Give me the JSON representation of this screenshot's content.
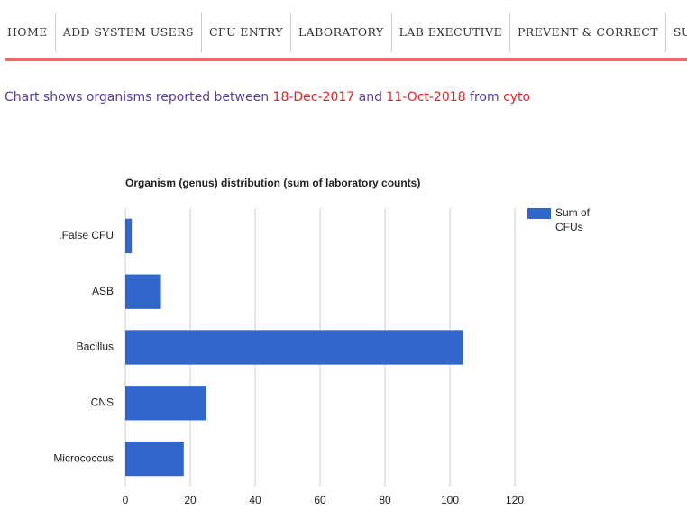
{
  "nav": [
    "HOME",
    "ADD SYSTEM USERS",
    "CFU ENTRY",
    "LABORATORY",
    "LAB EXECUTIVE",
    "PREVENT & CORRECT",
    "SUPERV"
  ],
  "intro": {
    "prefix": "Chart shows organisms reported between",
    "start": "18-Dec-2017",
    "joiner": "and",
    "end": "11-Oct-2018",
    "from": "from",
    "source": "cyto"
  },
  "chart_data": {
    "type": "bar",
    "orientation": "horizontal",
    "title": "Organism (genus) distribution (sum of laboratory counts)",
    "categories": [
      ".False CFU",
      "ASB",
      "Bacillus",
      "CNS",
      "Micrococcus"
    ],
    "series": [
      {
        "name": "Sum of CFUs",
        "color": "#3366cc",
        "values": [
          2,
          11,
          104,
          25,
          18
        ]
      }
    ],
    "xlim": [
      0,
      120
    ],
    "xticks": [
      0,
      20,
      40,
      60,
      80,
      100,
      120
    ],
    "grid": true,
    "legend": "right"
  }
}
